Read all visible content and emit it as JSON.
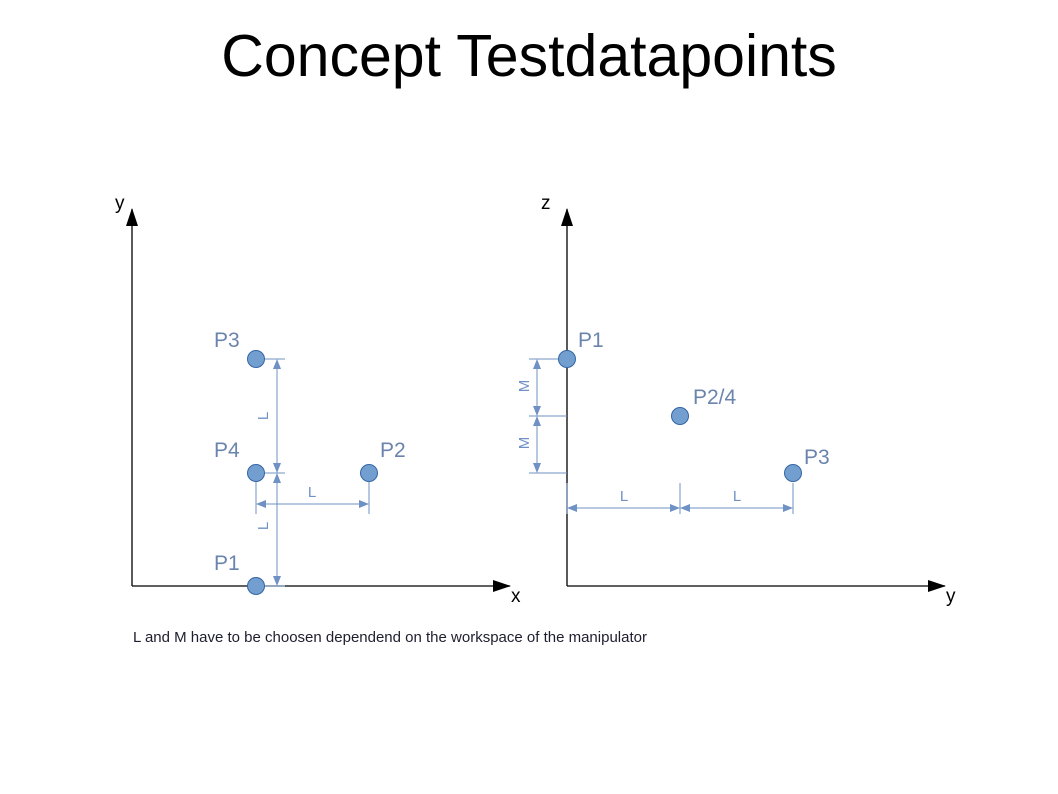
{
  "title": "Concept Testdatapoints",
  "note": "L and M have to be choosen dependend on the workspace of the manipulator",
  "colors": {
    "point_fill": "#729fcf",
    "point_stroke": "#3465a4",
    "dimension": "#6f91c3",
    "label": "#6b84ad",
    "axis": "#000000"
  },
  "left_view": {
    "x_axis_label": "x",
    "y_axis_label": "y",
    "points": {
      "p1": "P1",
      "p2": "P2",
      "p3": "P3",
      "p4": "P4"
    },
    "dimensions": {
      "p3_p4": "L",
      "p4_p2": "L",
      "p4_p1": "L"
    }
  },
  "right_view": {
    "y_axis_label": "y",
    "z_axis_label": "z",
    "points": {
      "p1": "P1",
      "p24": "P2/4",
      "p3": "P3"
    },
    "dimensions": {
      "m_upper": "M",
      "m_lower": "M",
      "l_left": "L",
      "l_right": "L"
    }
  }
}
